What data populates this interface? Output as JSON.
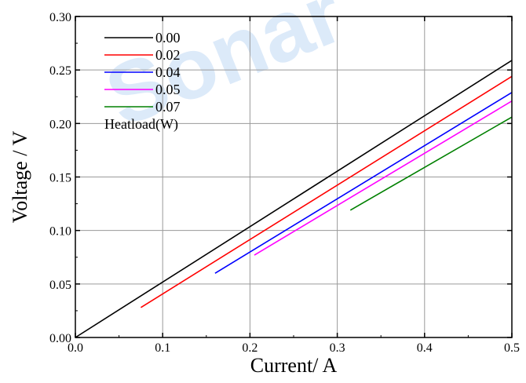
{
  "chart_data": {
    "type": "line",
    "title": "",
    "xlabel": "Current/ A",
    "ylabel": "Voltage / V",
    "xlim": [
      0.0,
      0.5
    ],
    "ylim": [
      0.0,
      0.3
    ],
    "xticks": [
      0.0,
      0.1,
      0.2,
      0.3,
      0.4,
      0.5
    ],
    "xtick_labels": [
      "0.0",
      "0.1",
      "0.2",
      "0.3",
      "0.4",
      "0.5"
    ],
    "yticks": [
      0.0,
      0.05,
      0.1,
      0.15,
      0.2,
      0.25,
      0.3
    ],
    "ytick_labels": [
      "0.00",
      "0.05",
      "0.10",
      "0.15",
      "0.20",
      "0.25",
      "0.30"
    ],
    "grid": true,
    "legend_position": "top-left",
    "legend_title": "Heatload(W)",
    "series": [
      {
        "name": "0.00",
        "color": "#000000",
        "x": [
          0.0,
          0.5
        ],
        "y": [
          0.0,
          0.259
        ]
      },
      {
        "name": "0.02",
        "color": "#ff0000",
        "x": [
          0.075,
          0.5
        ],
        "y": [
          0.028,
          0.244
        ]
      },
      {
        "name": "0.04",
        "color": "#0000ff",
        "x": [
          0.16,
          0.5
        ],
        "y": [
          0.06,
          0.229
        ]
      },
      {
        "name": "0.05",
        "color": "#ff00ff",
        "x": [
          0.205,
          0.5
        ],
        "y": [
          0.077,
          0.221
        ]
      },
      {
        "name": "0.07",
        "color": "#008000",
        "x": [
          0.315,
          0.5
        ],
        "y": [
          0.119,
          0.206
        ]
      }
    ]
  },
  "watermark": {
    "text": "Sonar"
  }
}
